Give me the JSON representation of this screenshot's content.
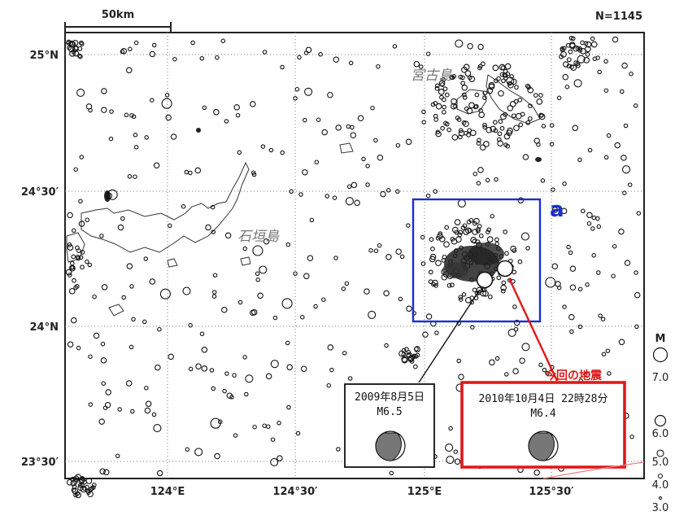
{
  "header": {
    "scale_label": "50km",
    "count_label": "N=1145"
  },
  "axes": {
    "lat_ticks": [
      "25°N",
      "24°30′",
      "24°N",
      "23°30′"
    ],
    "lon_ticks": [
      "124°E",
      "124°30′",
      "125°E",
      "125°30′"
    ]
  },
  "places": {
    "miyako": "宮古島",
    "ishigaki": "石垣島"
  },
  "region": {
    "label": "a",
    "color": "#1a2fd0"
  },
  "events": {
    "old": {
      "date": "2009年8月5日",
      "mag": "M6.5",
      "color": "#111111"
    },
    "new": {
      "date": "2010年10月4日 22時28分",
      "mag": "M6.4",
      "color": "#e01818",
      "tag": "今回の地震"
    }
  },
  "legend": {
    "title": "M",
    "items": [
      "7.0",
      "6.0",
      "5.0",
      "4.0",
      "3.0"
    ]
  }
}
